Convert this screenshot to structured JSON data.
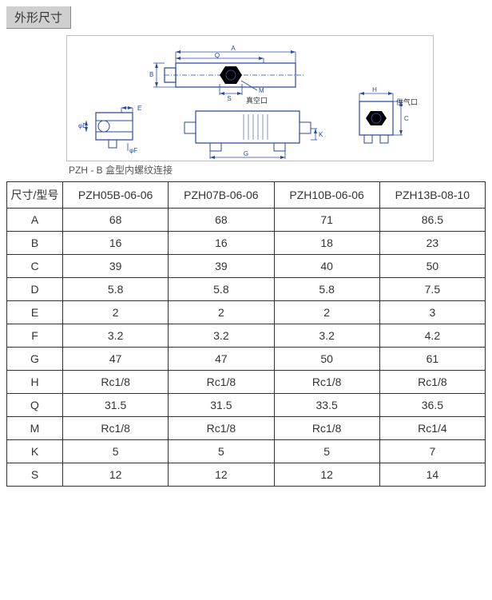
{
  "section_title": "外形尺寸",
  "diagram": {
    "caption": "PZH - B 盒型内螺纹连接",
    "labels": {
      "A": "A",
      "B": "B",
      "C": "C",
      "D": "φD",
      "E": "E",
      "F": "φF",
      "G": "G",
      "H": "H",
      "K": "K",
      "M": "M",
      "Q": "Q",
      "S": "S",
      "vacuum": "真空口",
      "supply": "供气口"
    }
  },
  "table": {
    "header_label": "尺寸/型号",
    "models": [
      "PZH05B-06-06",
      "PZH07B-06-06",
      "PZH10B-06-06",
      "PZH13B-08-10"
    ],
    "rows": [
      {
        "label": "A",
        "values": [
          "68",
          "68",
          "71",
          "86.5"
        ]
      },
      {
        "label": "B",
        "values": [
          "16",
          "16",
          "18",
          "23"
        ]
      },
      {
        "label": "C",
        "values": [
          "39",
          "39",
          "40",
          "50"
        ]
      },
      {
        "label": "D",
        "values": [
          "5.8",
          "5.8",
          "5.8",
          "7.5"
        ]
      },
      {
        "label": "E",
        "values": [
          "2",
          "2",
          "2",
          "3"
        ]
      },
      {
        "label": "F",
        "values": [
          "3.2",
          "3.2",
          "3.2",
          "4.2"
        ]
      },
      {
        "label": "G",
        "values": [
          "47",
          "47",
          "50",
          "61"
        ]
      },
      {
        "label": "H",
        "values": [
          "Rc1/8",
          "Rc1/8",
          "Rc1/8",
          "Rc1/8"
        ]
      },
      {
        "label": "Q",
        "values": [
          "31.5",
          "31.5",
          "33.5",
          "36.5"
        ]
      },
      {
        "label": "M",
        "values": [
          "Rc1/8",
          "Rc1/8",
          "Rc1/8",
          "Rc1/4"
        ]
      },
      {
        "label": "K",
        "values": [
          "5",
          "5",
          "5",
          "7"
        ]
      },
      {
        "label": "S",
        "values": [
          "12",
          "12",
          "12",
          "14"
        ]
      }
    ]
  },
  "style": {
    "line_color": "#2a4aa0",
    "header_bg": "#cfcfcf",
    "border_color": "#333333"
  }
}
